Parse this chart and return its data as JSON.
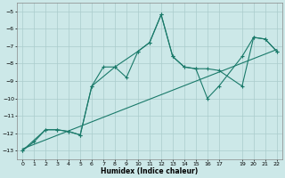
{
  "xlabel": "Humidex (Indice chaleur)",
  "xlim": [
    -0.5,
    22.5
  ],
  "ylim": [
    -13.5,
    -4.5
  ],
  "yticks": [
    -13,
    -12,
    -11,
    -10,
    -9,
    -8,
    -7,
    -6,
    -5
  ],
  "xticks": [
    0,
    1,
    2,
    3,
    4,
    5,
    6,
    7,
    8,
    9,
    10,
    11,
    12,
    13,
    14,
    15,
    16,
    17,
    19,
    20,
    21,
    22
  ],
  "bg_color": "#cce8e8",
  "grid_color": "#aacccc",
  "line_color": "#1a7a6a",
  "curve1_x": [
    0,
    1,
    2,
    3,
    4,
    5,
    6,
    7,
    8,
    9,
    10,
    11,
    12,
    13,
    14,
    15,
    16,
    17,
    19,
    20,
    21,
    22
  ],
  "curve1_y": [
    -13.0,
    -12.5,
    -11.8,
    -11.8,
    -11.9,
    -12.1,
    -9.3,
    -8.2,
    -8.2,
    -8.8,
    -7.3,
    -6.8,
    -5.2,
    -7.6,
    -8.2,
    -8.3,
    -8.3,
    -8.4,
    -9.3,
    -6.5,
    -6.6,
    -7.3
  ],
  "curve2_x": [
    0,
    2,
    3,
    4,
    5,
    6,
    8,
    10,
    11,
    12,
    13,
    14,
    15,
    16,
    17,
    19,
    20,
    21,
    22
  ],
  "curve2_y": [
    -13.0,
    -11.8,
    -11.8,
    -11.9,
    -12.1,
    -9.3,
    -8.2,
    -7.3,
    -6.8,
    -5.2,
    -7.6,
    -8.2,
    -8.3,
    -10.0,
    -9.3,
    -7.6,
    -6.5,
    -6.6,
    -7.3
  ],
  "trend_x": [
    0,
    22
  ],
  "trend_y": [
    -12.9,
    -7.2
  ]
}
